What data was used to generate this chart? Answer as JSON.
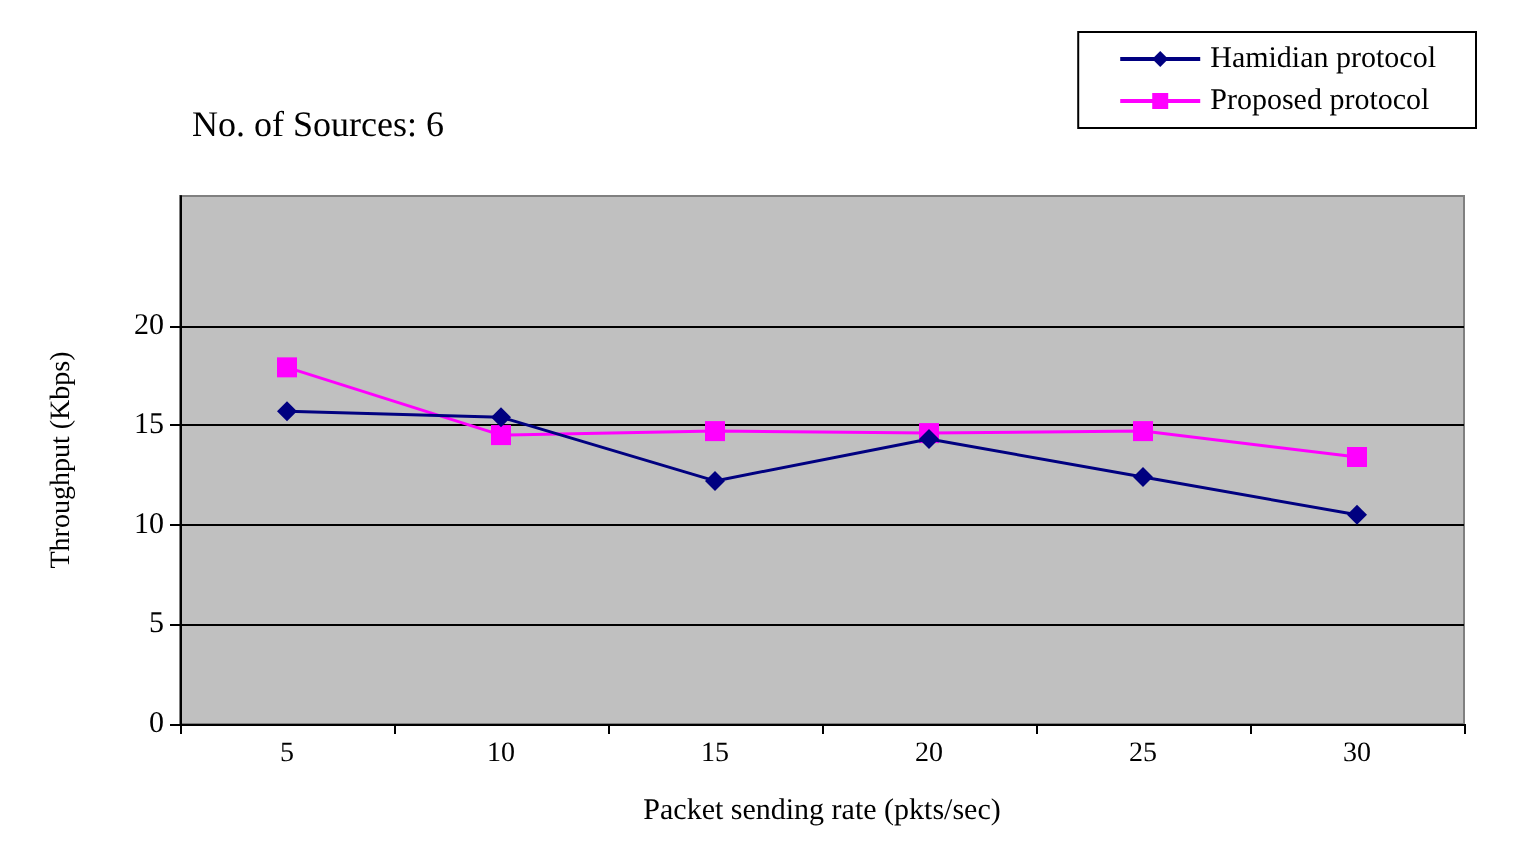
{
  "chart_data": {
    "type": "line",
    "xlabel": "Packet sending rate (pkts/sec)",
    "ylabel": "Throughput (Kbps)",
    "annotations": [
      "No. of Sources: 6"
    ],
    "categories": [
      "5",
      "10",
      "15",
      "20",
      "25",
      "30"
    ],
    "series": [
      {
        "name": "Hamidian protocol",
        "color": "#000080",
        "marker": "diamond",
        "values": [
          15.7,
          15.4,
          12.2,
          14.3,
          12.4,
          10.5
        ]
      },
      {
        "name": "Proposed protocol",
        "color": "#ff00ff",
        "marker": "square",
        "values": [
          17.9,
          14.5,
          14.7,
          14.6,
          14.7,
          13.4
        ]
      }
    ],
    "ylim": [
      0,
      26.5
    ],
    "yticks": [
      0,
      5,
      10,
      15,
      20
    ],
    "grid": "y",
    "legend": "top right",
    "line_style": "solid"
  }
}
